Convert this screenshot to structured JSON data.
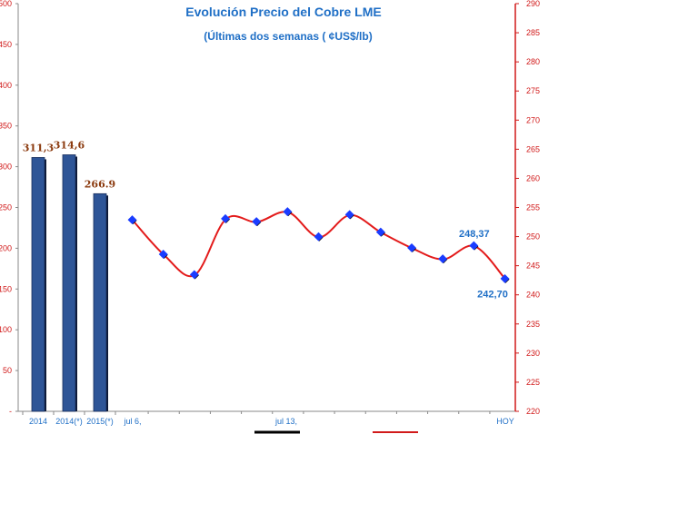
{
  "chart_data": {
    "type": "bar+line",
    "title": "Evolución Precio del Cobre LME",
    "subtitle": "(Últimas dos semanas ( ¢US$/lb)",
    "left_axis": {
      "ylim": [
        0,
        500
      ],
      "ticks": [
        "-",
        "50",
        "100",
        "150",
        "200",
        "250",
        "300",
        "350",
        "400",
        "450",
        "500"
      ],
      "color": "#d11a1a"
    },
    "right_axis": {
      "ylim": [
        220,
        290
      ],
      "ticks": [
        "220",
        "225",
        "230",
        "235",
        "240",
        "245",
        "250",
        "255",
        "260",
        "265",
        "270",
        "275",
        "280",
        "285",
        "290"
      ],
      "color": "#d11a1a"
    },
    "bars": {
      "categories": [
        "2014",
        "2014(*)",
        "2015(*)"
      ],
      "values": [
        311.3,
        314.6,
        266.9
      ],
      "labels": [
        "311,3",
        "314,6",
        "266.9"
      ],
      "color": "#2e5597"
    },
    "line": {
      "x_labels": [
        "jul 6,",
        "jul 13,",
        "HOY"
      ],
      "values": [
        252.8,
        246.9,
        243.4,
        253.0,
        252.5,
        254.2,
        249.9,
        253.7,
        250.7,
        248.0,
        246.1,
        248.37,
        242.7
      ],
      "point_labels": [
        {
          "index": 11,
          "text": "248,37"
        },
        {
          "index": 12,
          "text": "242,70"
        }
      ],
      "line_color": "#e31b1b",
      "marker_color": "#1a3cff"
    }
  }
}
